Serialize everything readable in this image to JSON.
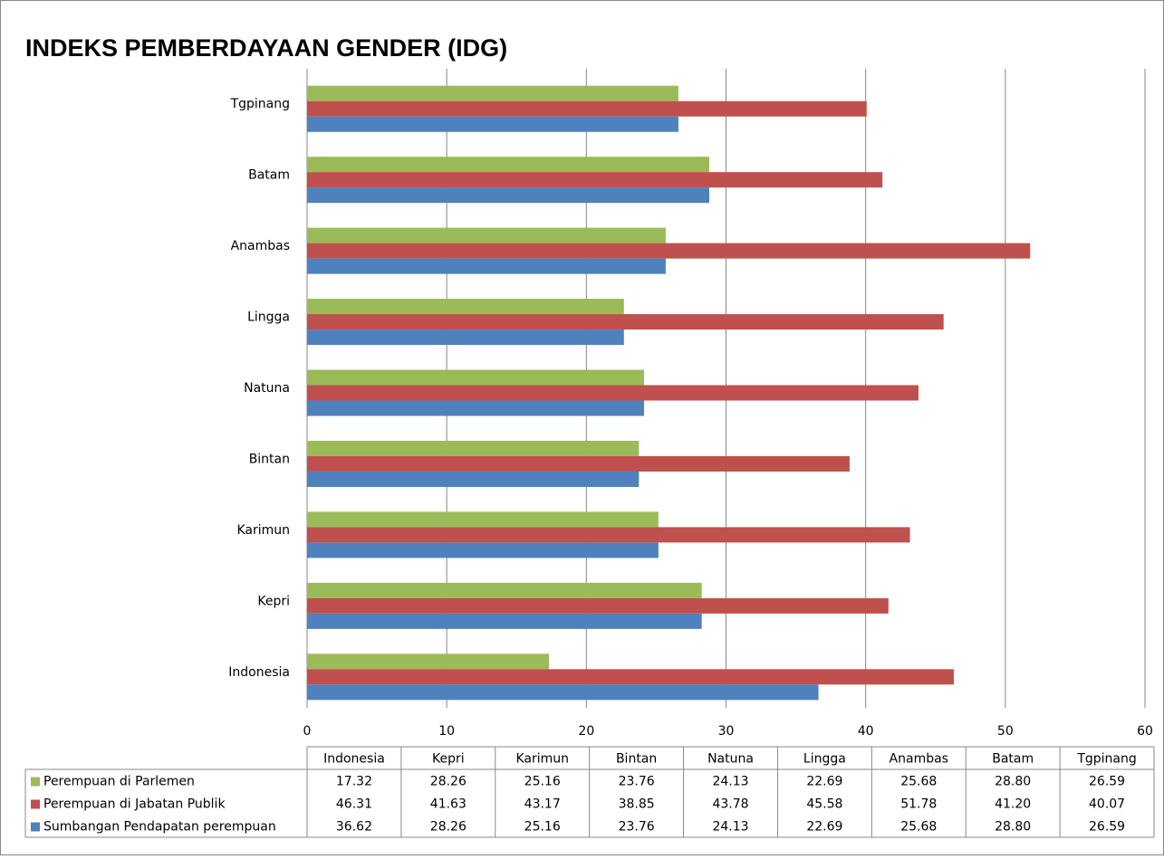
{
  "chart_data": {
    "type": "bar",
    "orientation": "horizontal",
    "title": "INDEKS PEMBERDAYAAN GENDER (IDG)",
    "categories": [
      "Indonesia",
      "Kepri",
      "Karimun",
      "Bintan",
      "Natuna",
      "Lingga",
      "Anambas",
      "Batam",
      "Tgpinang"
    ],
    "series": [
      {
        "name": "Perempuan di Parlemen",
        "color": "#9bbb59",
        "values": [
          17.32,
          28.26,
          25.16,
          23.76,
          24.13,
          22.69,
          25.68,
          28.8,
          26.59
        ],
        "value_labels": [
          "17.32",
          "28.26",
          "25.16",
          "23.76",
          "24.13",
          "22.69",
          "25.68",
          "28.80",
          "26.59"
        ]
      },
      {
        "name": "Perempuan di Jabatan Publik",
        "color": "#c0504d",
        "values": [
          46.31,
          41.63,
          43.17,
          38.85,
          43.78,
          45.58,
          51.78,
          41.2,
          40.07
        ],
        "value_labels": [
          "46.31",
          "41.63",
          "43.17",
          "38.85",
          "43.78",
          "45.58",
          "51.78",
          "41.20",
          "40.07"
        ]
      },
      {
        "name": "Sumbangan Pendapatan perempuan",
        "color": "#4f81bd",
        "values": [
          36.62,
          28.26,
          25.16,
          23.76,
          24.13,
          22.69,
          25.68,
          28.8,
          26.59
        ],
        "value_labels": [
          "36.62",
          "28.26",
          "25.16",
          "23.76",
          "24.13",
          "22.69",
          "25.68",
          "28.80",
          "26.59"
        ]
      }
    ],
    "xlim": [
      0,
      60
    ],
    "xticks": [
      0,
      10,
      20,
      30,
      40,
      50,
      60
    ],
    "grid": true,
    "data_table": true
  }
}
